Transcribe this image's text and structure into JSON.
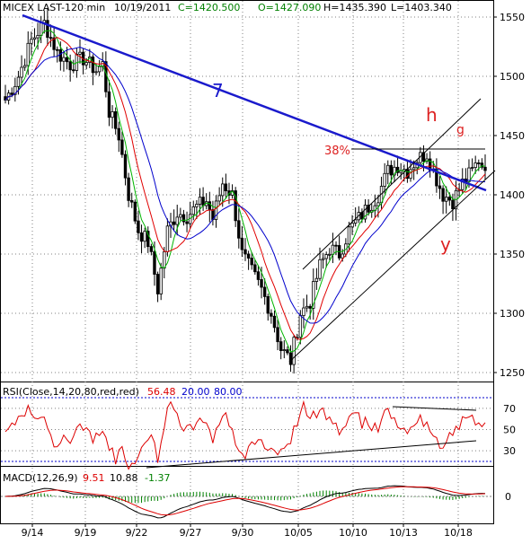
{
  "header": {
    "symbol": "MICEX LAST-120 min",
    "date": "10/19/2011",
    "close": "C=1420.500",
    "open": "O=1427.090",
    "high": "H=1435.390",
    "low": "L=1403.340"
  },
  "colors": {
    "background": "#ffffff",
    "grid": "#808080",
    "candle": "#000000",
    "ma_fast": "#00b400",
    "ma_mid": "#e00000",
    "ma_slow": "#0000cc",
    "trendline": "#1a1acc",
    "annotation_red": "#dd2222",
    "rsi_line": "#dd0000",
    "rsi_level": "#0000cc",
    "macd_line": "#000000",
    "macd_signal": "#dd0000",
    "macd_hist": "#008000"
  },
  "annotations": {
    "trend_label": "7",
    "h_label": "h",
    "g_label": "g",
    "y_label": "y",
    "fib_label": "38%"
  },
  "rsi_label": {
    "name": "RSI(Close,14,20,80,red,red)",
    "value": "56.48",
    "lower": "20.00",
    "upper": "80.00"
  },
  "macd_label": {
    "name": "MACD(12,26,9)",
    "macd": "9.51",
    "signal": "10.88",
    "hist": "-1.37"
  },
  "x_axis": {
    "ticks": [
      "9/14",
      "9/19",
      "9/22",
      "9/27",
      "9/30",
      "10/05",
      "10/10",
      "10/13",
      "10/18"
    ]
  },
  "chart_data": [
    {
      "type": "candlestick",
      "title": "MICEX LAST-120 min",
      "ylim": [
        1230,
        1570
      ],
      "y_ticks": [
        1250,
        1300,
        1350,
        1400,
        1450,
        1500,
        1550
      ],
      "x_ticks": [
        "9/14",
        "9/19",
        "9/22",
        "9/27",
        "9/30",
        "10/05",
        "10/10",
        "10/13",
        "10/18"
      ],
      "close_path": [
        [
          0,
          1480
        ],
        [
          4,
          1500
        ],
        [
          8,
          1530
        ],
        [
          12,
          1545
        ],
        [
          16,
          1520
        ],
        [
          20,
          1510
        ],
        [
          24,
          1515
        ],
        [
          28,
          1505
        ],
        [
          30,
          1510
        ],
        [
          32,
          1470
        ],
        [
          35,
          1450
        ],
        [
          38,
          1400
        ],
        [
          41,
          1370
        ],
        [
          44,
          1360
        ],
        [
          47,
          1320
        ],
        [
          50,
          1370
        ],
        [
          53,
          1385
        ],
        [
          56,
          1382
        ],
        [
          59,
          1390
        ],
        [
          62,
          1395
        ],
        [
          64,
          1380
        ],
        [
          67,
          1410
        ],
        [
          70,
          1400
        ],
        [
          73,
          1350
        ],
        [
          76,
          1335
        ],
        [
          79,
          1320
        ],
        [
          82,
          1300
        ],
        [
          85,
          1270
        ],
        [
          88,
          1260
        ],
        [
          91,
          1300
        ],
        [
          94,
          1310
        ],
        [
          97,
          1340
        ],
        [
          100,
          1355
        ],
        [
          103,
          1350
        ],
        [
          106,
          1370
        ],
        [
          109,
          1380
        ],
        [
          112,
          1390
        ],
        [
          115,
          1400
        ],
        [
          118,
          1420
        ],
        [
          121,
          1425
        ],
        [
          124,
          1420
        ],
        [
          127,
          1430
        ],
        [
          130,
          1435
        ],
        [
          132,
          1420
        ],
        [
          135,
          1400
        ],
        [
          138,
          1395
        ],
        [
          141,
          1410
        ],
        [
          144,
          1420
        ],
        [
          146,
          1430
        ],
        [
          148,
          1420.5
        ]
      ],
      "series": [
        {
          "name": "MA fast",
          "color": "#00b400"
        },
        {
          "name": "MA mid",
          "color": "#e00000"
        },
        {
          "name": "MA slow",
          "color": "#0000cc"
        }
      ]
    },
    {
      "type": "line",
      "title": "RSI(Close,14,20,80,red,red)",
      "ylim": [
        0,
        100
      ],
      "y_ticks": [
        30,
        50,
        70
      ],
      "levels": [
        20,
        80
      ],
      "last_value": 56.48
    },
    {
      "type": "line",
      "title": "MACD(12,26,9)",
      "y_ticks": [
        0
      ],
      "macd": 9.51,
      "signal": 10.88,
      "hist": -1.37
    }
  ]
}
